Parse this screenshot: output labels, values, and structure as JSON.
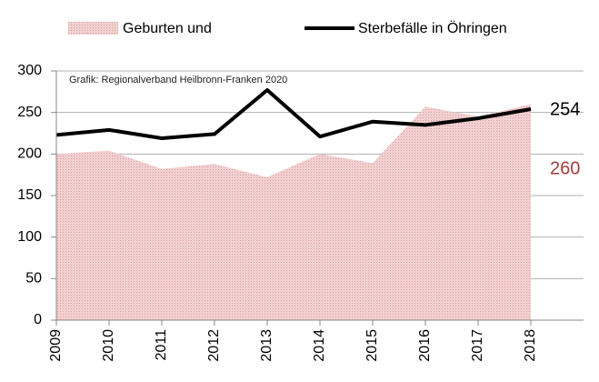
{
  "chart_data": {
    "type": "combo",
    "annotation": "Grafik: Regionalverband Heilbronn-Franken 2020",
    "categories": [
      "2009",
      "2010",
      "2011",
      "2012",
      "2013",
      "2014",
      "2015",
      "2016",
      "2017",
      "2018"
    ],
    "series": [
      {
        "name": "Geburten und",
        "type": "area",
        "color": "#efc4c4",
        "label_color": "#a33b3b",
        "values": [
          200,
          204,
          182,
          188,
          172,
          200,
          189,
          257,
          245,
          260
        ]
      },
      {
        "name": "Sterbefälle in Öhringen",
        "type": "line",
        "color": "#000000",
        "values": [
          223,
          229,
          219,
          224,
          277,
          221,
          239,
          235,
          243,
          254
        ]
      }
    ],
    "ylim": [
      0,
      300
    ],
    "yticks": [
      0,
      50,
      100,
      150,
      200,
      250,
      300
    ],
    "grid": true
  }
}
